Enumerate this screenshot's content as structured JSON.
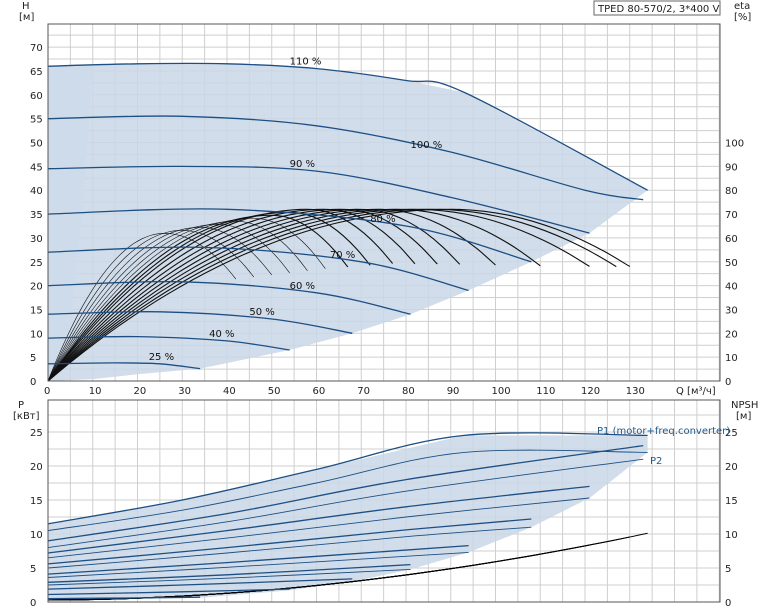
{
  "title": "TPED 80-570/2, 3*400 V",
  "colors": {
    "envelope": "#c9d7e6",
    "curve": "#1d4f84",
    "grid": "#cfcfcf",
    "eff": "#111111",
    "light": "#eaf2fb"
  },
  "chart_data": [
    {
      "type": "line",
      "name": "H-Q",
      "ylabel_left": "H",
      "ylabel_left_unit": "[м]",
      "ylabel_right": "eta",
      "ylabel_right_unit": "[%]",
      "xlabel": "Q [м³/ч]",
      "xlim": [
        0,
        150
      ],
      "ylim": [
        0,
        75
      ],
      "x_ticks": [
        "0",
        "10",
        "20",
        "30",
        "40",
        "50",
        "60",
        "70",
        "80",
        "90",
        "100",
        "110",
        "120",
        "130"
      ],
      "y_ticks_left": [
        "0",
        "5",
        "10",
        "15",
        "20",
        "25",
        "30",
        "35",
        "40",
        "45",
        "50",
        "55",
        "60",
        "65",
        "70"
      ],
      "y_ticks_right": [
        "0",
        "10",
        "20",
        "30",
        "40",
        "50",
        "60",
        "70",
        "80",
        "90",
        "100"
      ],
      "grid": true,
      "series": [
        {
          "name": "25 %",
          "points": [
            [
              0,
              3.6
            ],
            [
              15,
              3.8
            ],
            [
              25,
              3.6
            ],
            [
              34,
              2.6
            ]
          ]
        },
        {
          "name": "40 %",
          "points": [
            [
              0,
              9
            ],
            [
              20,
              9.3
            ],
            [
              40,
              8.4
            ],
            [
              54,
              6.5
            ]
          ]
        },
        {
          "name": "50 %",
          "points": [
            [
              0,
              14
            ],
            [
              25,
              14.5
            ],
            [
              50,
              13
            ],
            [
              68,
              10
            ]
          ]
        },
        {
          "name": "60 %",
          "points": [
            [
              0,
              20
            ],
            [
              30,
              20.8
            ],
            [
              60,
              18.5
            ],
            [
              81,
              14
            ]
          ]
        },
        {
          "name": "70 %",
          "points": [
            [
              0,
              27
            ],
            [
              35,
              28
            ],
            [
              70,
              25
            ],
            [
              94,
              19
            ]
          ]
        },
        {
          "name": "80 %",
          "points": [
            [
              0,
              35
            ],
            [
              40,
              36
            ],
            [
              80,
              32.5
            ],
            [
              108,
              25
            ]
          ]
        },
        {
          "name": "90 %",
          "points": [
            [
              0,
              44.5
            ],
            [
              30,
              45
            ],
            [
              60,
              44
            ],
            [
              90,
              38.5
            ],
            [
              121,
              31
            ]
          ]
        },
        {
          "name": "100 %",
          "points": [
            [
              0,
              55
            ],
            [
              30,
              55.5
            ],
            [
              60,
              53.5
            ],
            [
              90,
              48
            ],
            [
              120,
              40
            ],
            [
              133,
              38
            ]
          ]
        },
        {
          "name": "110 %",
          "points": [
            [
              0,
              66
            ],
            [
              20,
              66.5
            ],
            [
              40,
              66.5
            ],
            [
              60,
              65.5
            ],
            [
              80,
              63
            ],
            [
              93,
              60.5
            ],
            [
              134,
              40
            ]
          ]
        }
      ],
      "envelope": [
        [
          0,
          0
        ],
        [
          0,
          66
        ],
        [
          20,
          66.5
        ],
        [
          40,
          66.5
        ],
        [
          60,
          65.5
        ],
        [
          80,
          63
        ],
        [
          93,
          60.5
        ],
        [
          134,
          40
        ],
        [
          121,
          31
        ],
        [
          108,
          25
        ],
        [
          94,
          19
        ],
        [
          81,
          14
        ],
        [
          68,
          10
        ],
        [
          54,
          6.5
        ],
        [
          34,
          2.6
        ],
        [
          20,
          1.4
        ],
        [
          10,
          0.4
        ]
      ],
      "efficiency_right_axis": {
        "max_pct": 72,
        "bep_flows": [
          26,
          30,
          34,
          38,
          42,
          46,
          50,
          54,
          58,
          62,
          66,
          70,
          74,
          78,
          82,
          86,
          90
        ],
        "end_flows": [
          34,
          38,
          42,
          46,
          50,
          54,
          58,
          62,
          67,
          72,
          77,
          82,
          87,
          92,
          100,
          110,
          121,
          127,
          130,
          134
        ]
      }
    },
    {
      "type": "line",
      "name": "P-Q / NPSH-Q",
      "ylabel_left": "P",
      "ylabel_left_unit": "[кВт]",
      "ylabel_right": "NPSH",
      "ylabel_right_unit": "[м]",
      "xlim": [
        0,
        150
      ],
      "ylim": [
        0,
        27
      ],
      "y_ticks_left": [
        "0",
        "5",
        "10",
        "15",
        "20",
        "25"
      ],
      "y_ticks_right": [
        "0",
        "5",
        "10",
        "15",
        "20",
        "25"
      ],
      "grid": true,
      "annotations": [
        "P1 (motor+freq.converter)",
        "P2"
      ],
      "series": [
        {
          "name": "P1 110",
          "points": [
            [
              0,
              11.5
            ],
            [
              30,
              15
            ],
            [
              60,
              19.5
            ],
            [
              93,
              24.5
            ],
            [
              134,
              24.5
            ]
          ]
        },
        {
          "name": "P2 110",
          "points": [
            [
              0,
              10.5
            ],
            [
              30,
              13.5
            ],
            [
              60,
              17.5
            ],
            [
              93,
              22
            ],
            [
              134,
              22
            ]
          ]
        },
        {
          "name": "P1 100",
          "points": [
            [
              0,
              9
            ],
            [
              40,
              13
            ],
            [
              80,
              18
            ],
            [
              133,
              23
            ]
          ]
        },
        {
          "name": "P2 100",
          "points": [
            [
              0,
              8
            ],
            [
              40,
              11.8
            ],
            [
              80,
              16.3
            ],
            [
              133,
              21
            ]
          ]
        },
        {
          "name": "P1 90",
          "points": [
            [
              0,
              7.2
            ],
            [
              40,
              10.5
            ],
            [
              80,
              14
            ],
            [
              121,
              17
            ]
          ]
        },
        {
          "name": "P2 90",
          "points": [
            [
              0,
              6.5
            ],
            [
              40,
              9.4
            ],
            [
              80,
              12.5
            ],
            [
              121,
              15.3
            ]
          ]
        },
        {
          "name": "P1 80",
          "points": [
            [
              0,
              5.6
            ],
            [
              40,
              8
            ],
            [
              80,
              10.6
            ],
            [
              108,
              12.2
            ]
          ]
        },
        {
          "name": "P2 80",
          "points": [
            [
              0,
              5
            ],
            [
              40,
              7.2
            ],
            [
              80,
              9.6
            ],
            [
              108,
              11
            ]
          ]
        },
        {
          "name": "P1 70",
          "points": [
            [
              0,
              4.1
            ],
            [
              40,
              5.8
            ],
            [
              94,
              8.3
            ]
          ]
        },
        {
          "name": "P2 70",
          "points": [
            [
              0,
              3.6
            ],
            [
              40,
              5.1
            ],
            [
              94,
              7.3
            ]
          ]
        },
        {
          "name": "P1 60",
          "points": [
            [
              0,
              2.9
            ],
            [
              40,
              4
            ],
            [
              81,
              5.5
            ]
          ]
        },
        {
          "name": "P2 60",
          "points": [
            [
              0,
              2.5
            ],
            [
              40,
              3.5
            ],
            [
              81,
              4.8
            ]
          ]
        },
        {
          "name": "P1 50",
          "points": [
            [
              0,
              1.9
            ],
            [
              30,
              2.5
            ],
            [
              68,
              3.4
            ]
          ]
        },
        {
          "name": "P1 40",
          "points": [
            [
              0,
              1.1
            ],
            [
              30,
              1.5
            ],
            [
              54,
              1.9
            ]
          ]
        },
        {
          "name": "P1 25",
          "points": [
            [
              0,
              0.5
            ],
            [
              20,
              0.6
            ],
            [
              34,
              0.7
            ]
          ]
        }
      ],
      "envelope": [
        [
          0,
          11.5
        ],
        [
          30,
          15
        ],
        [
          60,
          19.5
        ],
        [
          93,
          24.5
        ],
        [
          134,
          24.5
        ],
        [
          134,
          22
        ],
        [
          121,
          15.3
        ],
        [
          108,
          11
        ],
        [
          94,
          7.3
        ],
        [
          81,
          4.8
        ],
        [
          68,
          3
        ],
        [
          54,
          1.7
        ],
        [
          34,
          0.6
        ],
        [
          0,
          0.3
        ]
      ],
      "npsh_end_flows": [
        30,
        40,
        50,
        60,
        70,
        80,
        90,
        100,
        110,
        121,
        130,
        134
      ],
      "npsh_max": 9.8
    }
  ]
}
